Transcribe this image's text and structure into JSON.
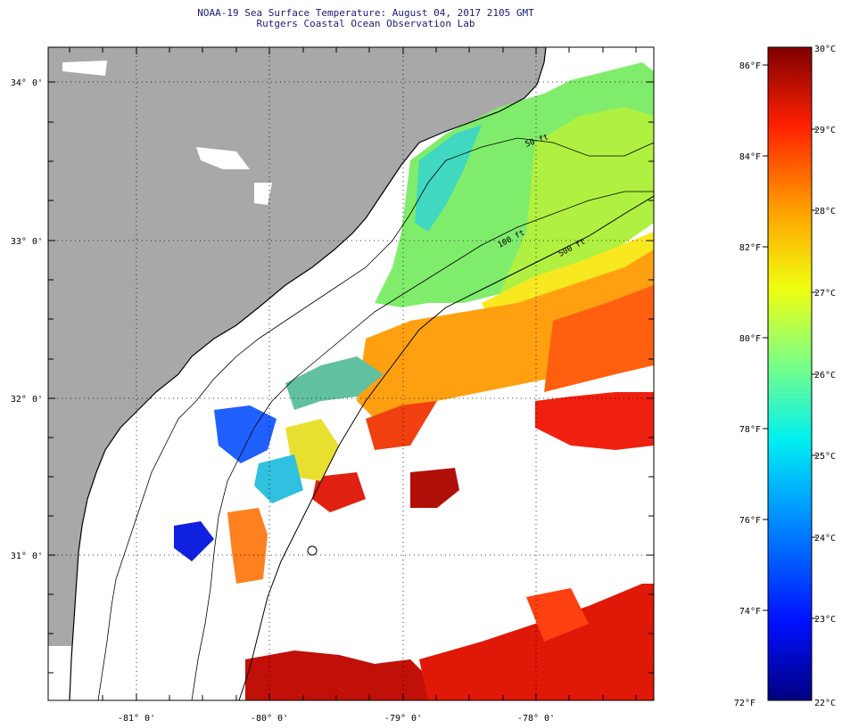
{
  "title": "NOAA-19 Sea Surface Temperature:  August 04, 2017 2105 GMT",
  "subtitle": "Rutgers Coastal Ocean Observation Lab",
  "map": {
    "lon_labels": [
      "-81° 0'",
      "-80° 0'",
      "-79° 0'",
      "-78° 0'"
    ],
    "lat_labels": [
      "34° 0'",
      "33° 0'",
      "32° 0'",
      "31° 0'"
    ],
    "isobath_labels": [
      "50 ft",
      "100 ft",
      "500 ft"
    ],
    "colors": {
      "land": "#a8a8a8",
      "cloud": "#ffffff",
      "coast": "#000000"
    }
  },
  "colorbar": {
    "fahrenheit_labels": [
      "86°F",
      "84°F",
      "82°F",
      "80°F",
      "78°F",
      "76°F",
      "74°F",
      "72°F"
    ],
    "celsius_labels": [
      "30°C",
      "29°C",
      "28°C",
      "27°C",
      "26°C",
      "25°C",
      "24°C",
      "23°C",
      "22°C"
    ],
    "stops": [
      "#00007f",
      "#0010ff",
      "#00a0ff",
      "#00f0f0",
      "#80ff80",
      "#f0ff10",
      "#ffa000",
      "#ff2000",
      "#7f0000"
    ]
  }
}
